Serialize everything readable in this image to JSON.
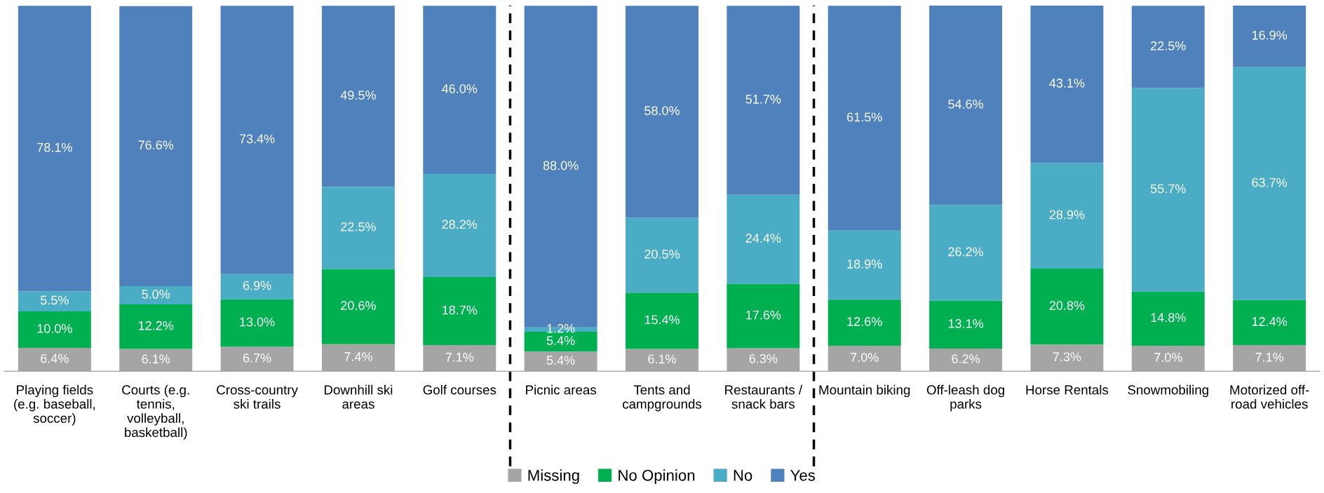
{
  "chart_data": {
    "type": "bar",
    "stacked": true,
    "legend": "bottom",
    "grid": false,
    "categories": [
      "Playing fields\n(e.g. baseball,\nsoccer)",
      "Courts (e.g.\ntennis,\nvolleyball,\nbasketball)",
      "Cross-country\nski trails",
      "Downhill ski\nareas",
      "Golf courses",
      "Picnic areas",
      "Tents and\ncampgrounds",
      "Restaurants /\nsnack bars",
      "Mountain biking",
      "Off-leash dog\nparks",
      "Horse Rentals",
      "Snowmobiling",
      "Motorized off-\nroad vehicles"
    ],
    "series": [
      {
        "name": "Missing",
        "color": "#a5a5a5",
        "values": [
          6.4,
          6.1,
          6.7,
          7.4,
          7.1,
          5.4,
          6.1,
          6.3,
          7.0,
          6.2,
          7.3,
          7.0,
          7.1
        ],
        "value_labels": [
          "6.4%",
          "6.1%",
          "6.7%",
          "7.4%",
          "7.1%",
          "5.4%",
          "6.1%",
          "6.3%",
          "7.0%",
          "6.2%",
          "7.3%",
          "7.0%",
          "7.1%"
        ]
      },
      {
        "name": "No Opinion",
        "color": "#00b050",
        "values": [
          10.0,
          12.2,
          13.0,
          20.6,
          18.7,
          5.4,
          15.4,
          17.6,
          12.6,
          13.1,
          20.8,
          14.8,
          12.4
        ],
        "value_labels": [
          "10.0%",
          "12.2%",
          "13.0%",
          "20.6%",
          "18.7%",
          "5.4%",
          "15.4%",
          "17.6%",
          "12.6%",
          "13.1%",
          "20.8%",
          "14.8%",
          "12.4%"
        ]
      },
      {
        "name": "No",
        "color": "#4bacc6",
        "values": [
          5.5,
          5.0,
          6.9,
          22.5,
          28.2,
          1.2,
          20.5,
          24.4,
          18.9,
          26.2,
          28.9,
          55.7,
          63.7
        ],
        "value_labels": [
          "5.5%",
          "5.0%",
          "6.9%",
          "22.5%",
          "28.2%",
          "1.2%",
          "20.5%",
          "24.4%",
          "18.9%",
          "26.2%",
          "28.9%",
          "55.7%",
          "63.7%"
        ]
      },
      {
        "name": "Yes",
        "color": "#4f81bd",
        "values": [
          78.1,
          76.6,
          73.4,
          49.5,
          46.0,
          88.0,
          58.0,
          51.7,
          61.5,
          54.6,
          43.1,
          22.5,
          16.9
        ],
        "value_labels": [
          "78.1%",
          "76.6%",
          "73.4%",
          "49.5%",
          "46.0%",
          "88.0%",
          "58.0%",
          "51.7%",
          "61.5%",
          "54.6%",
          "43.1%",
          "22.5%",
          "16.9%"
        ]
      }
    ]
  }
}
